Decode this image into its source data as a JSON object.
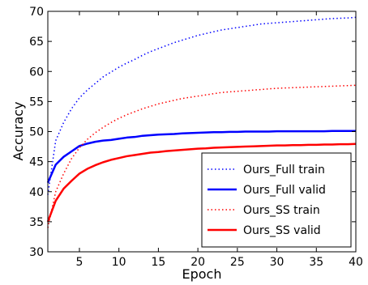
{
  "chart_data": {
    "type": "line",
    "title": "",
    "xlabel": "Epoch",
    "ylabel": "Accuracy",
    "xlim": [
      1,
      40
    ],
    "ylim": [
      30,
      70
    ],
    "xticks": [
      5,
      10,
      15,
      20,
      25,
      30,
      35,
      40
    ],
    "yticks": [
      30,
      35,
      40,
      45,
      50,
      55,
      60,
      65,
      70
    ],
    "grid": false,
    "legend_position": "lower right",
    "x": [
      1,
      2,
      3,
      4,
      5,
      6,
      7,
      8,
      9,
      10,
      11,
      12,
      13,
      14,
      15,
      16,
      17,
      18,
      19,
      20,
      21,
      22,
      23,
      24,
      25,
      26,
      27,
      28,
      29,
      30,
      31,
      32,
      33,
      34,
      35,
      36,
      37,
      38,
      39,
      40
    ],
    "series": [
      {
        "name": "Ours_Full train",
        "color": "#0000ff",
        "style": "dotted",
        "values": [
          39.5,
          48.5,
          51.5,
          53.8,
          55.6,
          56.9,
          58.0,
          59.1,
          59.9,
          60.7,
          61.4,
          62.0,
          62.7,
          63.3,
          63.8,
          64.3,
          64.8,
          65.2,
          65.6,
          66.0,
          66.3,
          66.6,
          66.9,
          67.1,
          67.3,
          67.5,
          67.7,
          67.9,
          68.0,
          68.1,
          68.2,
          68.3,
          68.4,
          68.5,
          68.6,
          68.7,
          68.8,
          68.85,
          68.9,
          69.0
        ]
      },
      {
        "name": "Ours_Full valid",
        "color": "#0000ff",
        "style": "solid",
        "values": [
          41.5,
          44.5,
          45.8,
          46.7,
          47.6,
          48.0,
          48.3,
          48.5,
          48.6,
          48.8,
          49.0,
          49.1,
          49.3,
          49.4,
          49.5,
          49.55,
          49.6,
          49.7,
          49.75,
          49.8,
          49.85,
          49.9,
          49.9,
          49.95,
          49.95,
          50.0,
          50.0,
          50.0,
          50.0,
          50.05,
          50.05,
          50.05,
          50.05,
          50.05,
          50.05,
          50.05,
          50.1,
          50.1,
          50.1,
          50.1
        ]
      },
      {
        "name": "Ours_SS train",
        "color": "#ff0000",
        "style": "dotted",
        "values": [
          34.0,
          40.0,
          43.0,
          45.5,
          47.3,
          48.7,
          49.8,
          50.7,
          51.5,
          52.2,
          52.8,
          53.3,
          53.8,
          54.2,
          54.6,
          54.9,
          55.2,
          55.5,
          55.7,
          55.9,
          56.1,
          56.3,
          56.5,
          56.6,
          56.7,
          56.8,
          56.9,
          57.0,
          57.1,
          57.2,
          57.25,
          57.3,
          57.35,
          57.4,
          57.45,
          57.5,
          57.55,
          57.6,
          57.65,
          57.7
        ]
      },
      {
        "name": "Ours_SS valid",
        "color": "#ff0000",
        "style": "solid",
        "values": [
          35.0,
          38.5,
          40.5,
          41.8,
          43.0,
          43.8,
          44.4,
          44.9,
          45.3,
          45.6,
          45.9,
          46.1,
          46.3,
          46.5,
          46.6,
          46.75,
          46.85,
          46.95,
          47.05,
          47.15,
          47.2,
          47.3,
          47.35,
          47.4,
          47.45,
          47.5,
          47.55,
          47.6,
          47.65,
          47.7,
          47.7,
          47.75,
          47.75,
          47.8,
          47.8,
          47.85,
          47.85,
          47.9,
          47.9,
          47.95
        ]
      }
    ]
  }
}
